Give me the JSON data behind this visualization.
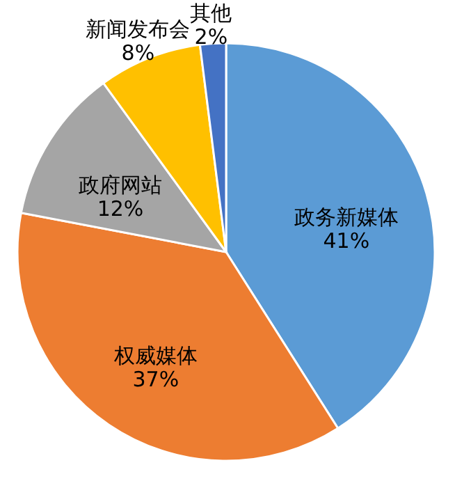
{
  "chart_data": {
    "type": "pie",
    "categories": [
      "政务新媒体",
      "权威媒体",
      "政府网站",
      "新闻发布会",
      "其他"
    ],
    "values": [
      41,
      37,
      12,
      8,
      2
    ],
    "colors": [
      "#5b9bd5",
      "#ed7d31",
      "#a5a5a5",
      "#ffc000",
      "#4472c4"
    ],
    "value_labels": [
      "41%",
      "37%",
      "12%",
      "8%",
      "2%"
    ],
    "legend": false
  }
}
